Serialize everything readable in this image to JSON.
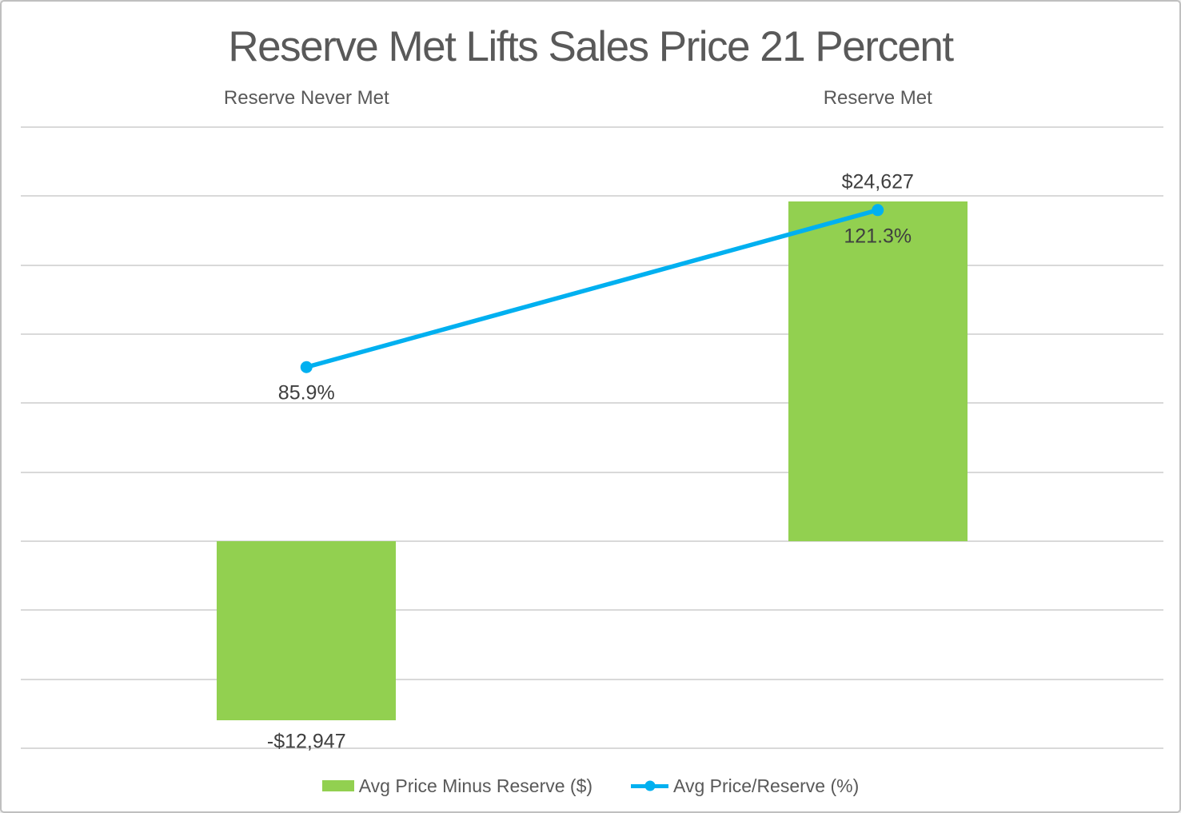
{
  "chart_data": {
    "type": "bar",
    "subtype": "bar-line-combo",
    "title": "Reserve Met Lifts Sales Price 21 Percent",
    "categories": [
      "Reserve Never Met",
      "Reserve Met"
    ],
    "series": [
      {
        "name": "Avg Price Minus Reserve ($)",
        "type": "bar",
        "axis": "primary",
        "color": "#92D050",
        "values": [
          -12947,
          24627
        ],
        "labels": [
          "-$12,947",
          "$24,627"
        ]
      },
      {
        "name": "Avg Price/Reserve (%)",
        "type": "line",
        "axis": "secondary",
        "color": "#00B0F0",
        "values": [
          85.9,
          121.3
        ],
        "labels": [
          "85.9%",
          "121.3%"
        ]
      }
    ],
    "ylim": [
      -15000,
      30000
    ],
    "y_step": 5000,
    "y2lim": [
      0,
      140
    ],
    "grid": true,
    "axis_labels_visible": false,
    "legend_position": "bottom",
    "colors": {
      "grid": "#D9D9D9",
      "title_text": "#595959",
      "data_label_text": "#3F3F3F",
      "frame_border": "#BFBFBF",
      "background": "#FFFFFF"
    }
  }
}
